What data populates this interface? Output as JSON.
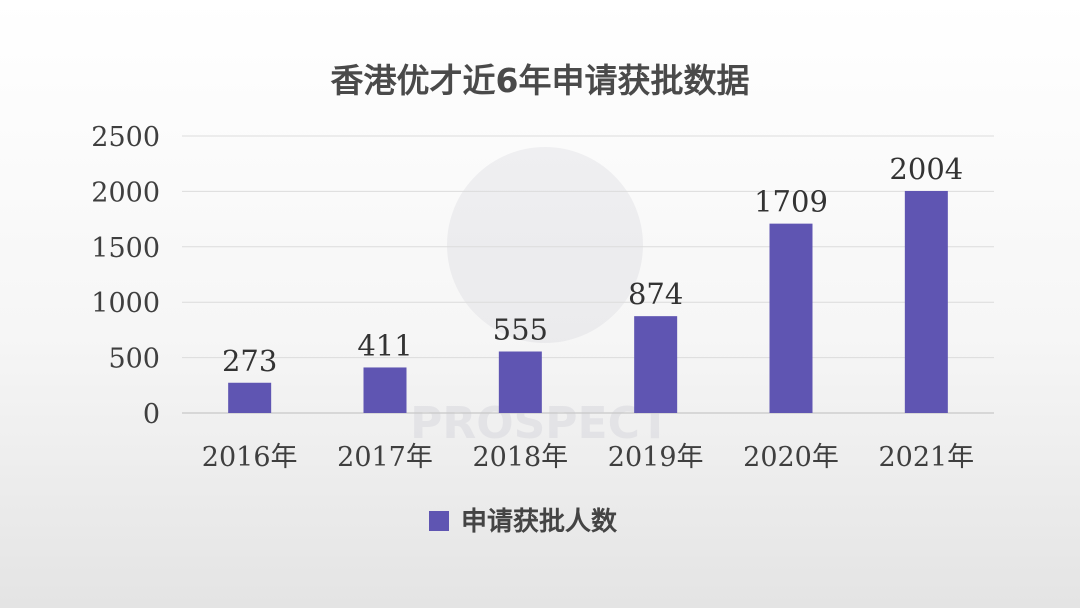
{
  "chart_data": {
    "type": "bar",
    "title": "香港优才近6年申请获批数据",
    "xlabel": "",
    "ylabel": "",
    "categories": [
      "2016年",
      "2017年",
      "2018年",
      "2019年",
      "2020年",
      "2021年"
    ],
    "series": [
      {
        "name": "申请获批人数",
        "values": [
          273,
          411,
          555,
          874,
          1709,
          2004
        ],
        "color": "#5f55b2"
      }
    ],
    "ylim": [
      0,
      2500
    ],
    "yticks": [
      0,
      500,
      1000,
      1500,
      2000,
      2500
    ],
    "grid": true,
    "legend_position": "bottom",
    "data_labels": true
  },
  "watermark": {
    "text": "PROSPECT"
  }
}
